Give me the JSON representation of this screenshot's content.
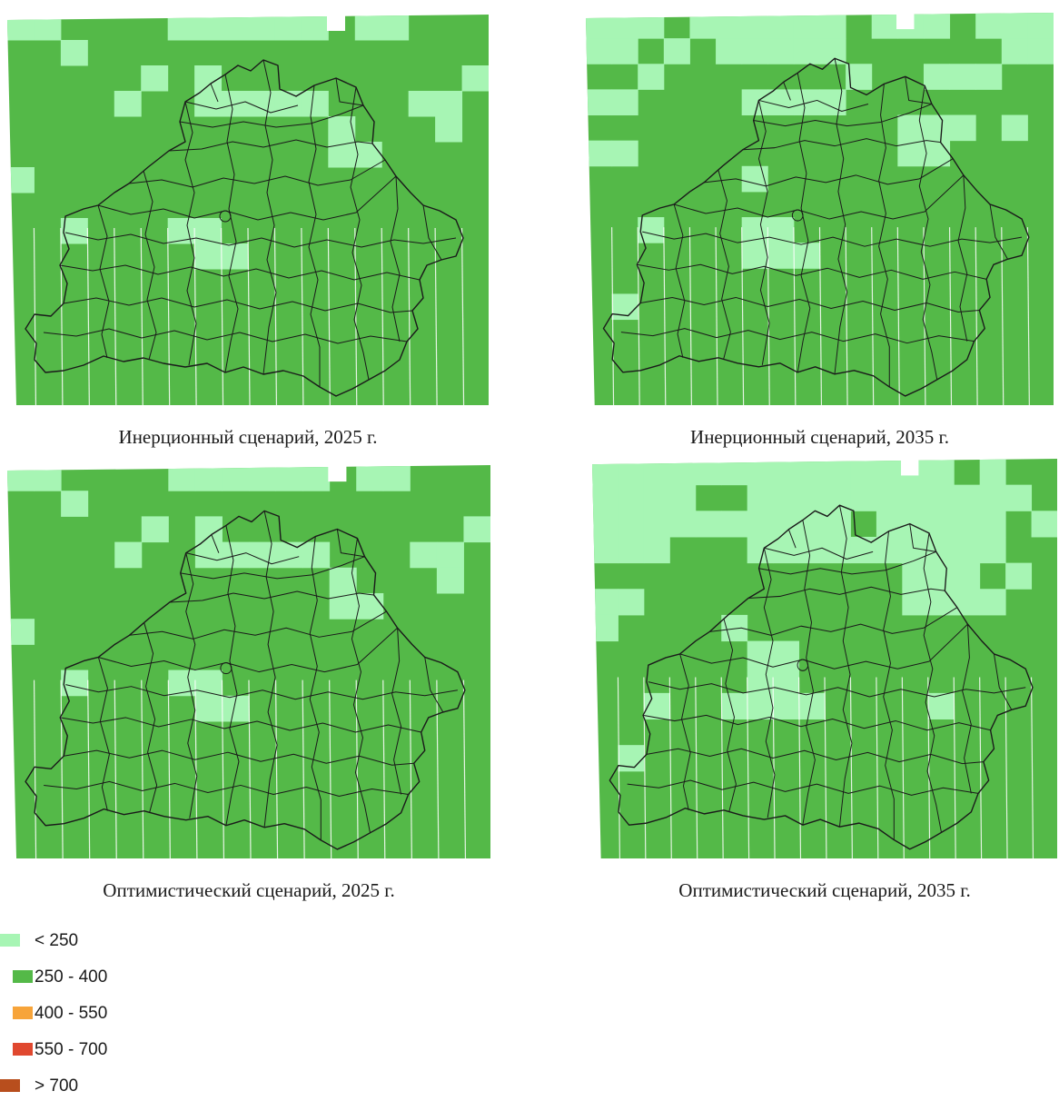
{
  "maps": [
    {
      "caption": "Инерционный сценарий, 2025 г.",
      "light_cells": [
        [
          0,
          0
        ],
        [
          1,
          0
        ],
        [
          2,
          1
        ],
        [
          6,
          0
        ],
        [
          7,
          0
        ],
        [
          8,
          0
        ],
        [
          9,
          0
        ],
        [
          10,
          0
        ],
        [
          11,
          0
        ],
        [
          13,
          0
        ],
        [
          14,
          0
        ],
        [
          5,
          2
        ],
        [
          4,
          3
        ],
        [
          7,
          2
        ],
        [
          7,
          3
        ],
        [
          8,
          3
        ],
        [
          9,
          3
        ],
        [
          10,
          3
        ],
        [
          11,
          3
        ],
        [
          15,
          3
        ],
        [
          16,
          3
        ],
        [
          17,
          2
        ],
        [
          12,
          4
        ],
        [
          16,
          4
        ],
        [
          12,
          5
        ],
        [
          13,
          5
        ],
        [
          0,
          6
        ],
        [
          2,
          8
        ],
        [
          6,
          8
        ],
        [
          7,
          8
        ],
        [
          7,
          9
        ],
        [
          8,
          9
        ]
      ]
    },
    {
      "caption": "Инерционный сценарий, 2035 г.",
      "light_cells": [
        [
          0,
          0
        ],
        [
          1,
          0
        ],
        [
          2,
          0
        ],
        [
          3,
          1
        ],
        [
          4,
          0
        ],
        [
          5,
          0
        ],
        [
          6,
          0
        ],
        [
          7,
          0
        ],
        [
          8,
          0
        ],
        [
          9,
          0
        ],
        [
          11,
          0
        ],
        [
          12,
          0
        ],
        [
          13,
          0
        ],
        [
          15,
          0
        ],
        [
          16,
          0
        ],
        [
          17,
          0
        ],
        [
          0,
          1
        ],
        [
          1,
          1
        ],
        [
          2,
          2
        ],
        [
          5,
          1
        ],
        [
          6,
          1
        ],
        [
          7,
          1
        ],
        [
          8,
          1
        ],
        [
          9,
          1
        ],
        [
          10,
          2
        ],
        [
          13,
          2
        ],
        [
          14,
          2
        ],
        [
          15,
          2
        ],
        [
          16,
          1
        ],
        [
          17,
          1
        ],
        [
          0,
          3
        ],
        [
          1,
          3
        ],
        [
          6,
          3
        ],
        [
          7,
          3
        ],
        [
          8,
          3
        ],
        [
          9,
          3
        ],
        [
          12,
          4
        ],
        [
          13,
          4
        ],
        [
          14,
          4
        ],
        [
          16,
          4
        ],
        [
          0,
          5
        ],
        [
          1,
          5
        ],
        [
          12,
          5
        ],
        [
          13,
          5
        ],
        [
          6,
          6
        ],
        [
          2,
          8
        ],
        [
          6,
          8
        ],
        [
          7,
          8
        ],
        [
          6,
          9
        ],
        [
          7,
          9
        ],
        [
          8,
          9
        ],
        [
          1,
          11
        ]
      ]
    },
    {
      "caption": "Оптимистический сценарий, 2025 г.",
      "light_cells": [
        [
          0,
          0
        ],
        [
          1,
          0
        ],
        [
          2,
          1
        ],
        [
          6,
          0
        ],
        [
          7,
          0
        ],
        [
          8,
          0
        ],
        [
          9,
          0
        ],
        [
          10,
          0
        ],
        [
          11,
          0
        ],
        [
          13,
          0
        ],
        [
          14,
          0
        ],
        [
          5,
          2
        ],
        [
          4,
          3
        ],
        [
          7,
          2
        ],
        [
          7,
          3
        ],
        [
          8,
          3
        ],
        [
          9,
          3
        ],
        [
          10,
          3
        ],
        [
          11,
          3
        ],
        [
          15,
          3
        ],
        [
          16,
          3
        ],
        [
          17,
          2
        ],
        [
          12,
          4
        ],
        [
          16,
          4
        ],
        [
          12,
          5
        ],
        [
          13,
          5
        ],
        [
          0,
          6
        ],
        [
          2,
          8
        ],
        [
          6,
          8
        ],
        [
          7,
          8
        ],
        [
          7,
          9
        ],
        [
          8,
          9
        ]
      ]
    },
    {
      "caption": "Оптимистический сценарий, 2035 г.",
      "light_cells": [
        [
          0,
          0
        ],
        [
          1,
          0
        ],
        [
          2,
          0
        ],
        [
          3,
          0
        ],
        [
          4,
          0
        ],
        [
          5,
          0
        ],
        [
          6,
          0
        ],
        [
          7,
          0
        ],
        [
          8,
          0
        ],
        [
          9,
          0
        ],
        [
          10,
          0
        ],
        [
          11,
          0
        ],
        [
          12,
          0
        ],
        [
          13,
          0
        ],
        [
          15,
          0
        ],
        [
          0,
          1
        ],
        [
          1,
          1
        ],
        [
          2,
          1
        ],
        [
          3,
          1
        ],
        [
          4,
          2
        ],
        [
          5,
          2
        ],
        [
          6,
          1
        ],
        [
          7,
          1
        ],
        [
          8,
          1
        ],
        [
          9,
          1
        ],
        [
          10,
          1
        ],
        [
          11,
          1
        ],
        [
          12,
          1
        ],
        [
          13,
          1
        ],
        [
          14,
          1
        ],
        [
          15,
          1
        ],
        [
          16,
          1
        ],
        [
          0,
          2
        ],
        [
          1,
          2
        ],
        [
          2,
          2
        ],
        [
          3,
          2
        ],
        [
          6,
          2
        ],
        [
          7,
          2
        ],
        [
          8,
          2
        ],
        [
          9,
          2
        ],
        [
          11,
          2
        ],
        [
          12,
          2
        ],
        [
          13,
          2
        ],
        [
          14,
          2
        ],
        [
          15,
          2
        ],
        [
          17,
          2
        ],
        [
          0,
          3
        ],
        [
          1,
          3
        ],
        [
          2,
          3
        ],
        [
          6,
          3
        ],
        [
          7,
          3
        ],
        [
          8,
          3
        ],
        [
          9,
          3
        ],
        [
          10,
          3
        ],
        [
          11,
          3
        ],
        [
          12,
          3
        ],
        [
          13,
          3
        ],
        [
          14,
          3
        ],
        [
          15,
          3
        ],
        [
          16,
          4
        ],
        [
          12,
          4
        ],
        [
          13,
          4
        ],
        [
          14,
          4
        ],
        [
          12,
          5
        ],
        [
          13,
          5
        ],
        [
          14,
          5
        ],
        [
          15,
          5
        ],
        [
          0,
          5
        ],
        [
          1,
          5
        ],
        [
          0,
          6
        ],
        [
          5,
          6
        ],
        [
          6,
          7
        ],
        [
          7,
          7
        ],
        [
          6,
          8
        ],
        [
          7,
          8
        ],
        [
          2,
          9
        ],
        [
          5,
          9
        ],
        [
          6,
          9
        ],
        [
          7,
          9
        ],
        [
          8,
          9
        ],
        [
          1,
          11
        ],
        [
          13,
          9
        ]
      ]
    }
  ],
  "legend": {
    "items": [
      {
        "label": "< 250",
        "color": "#a7f5b4"
      },
      {
        "label": "250 - 400",
        "color": "#54b948"
      },
      {
        "label": "400 - 550",
        "color": "#f7a43a"
      },
      {
        "label": "550 - 700",
        "color": "#e0482f"
      },
      {
        "label": "> 700",
        "color": "#b84e1d"
      }
    ]
  },
  "colors": {
    "dark_green": "#54b948",
    "light_green": "#a7f5b4",
    "border": "#1a1a1a"
  }
}
